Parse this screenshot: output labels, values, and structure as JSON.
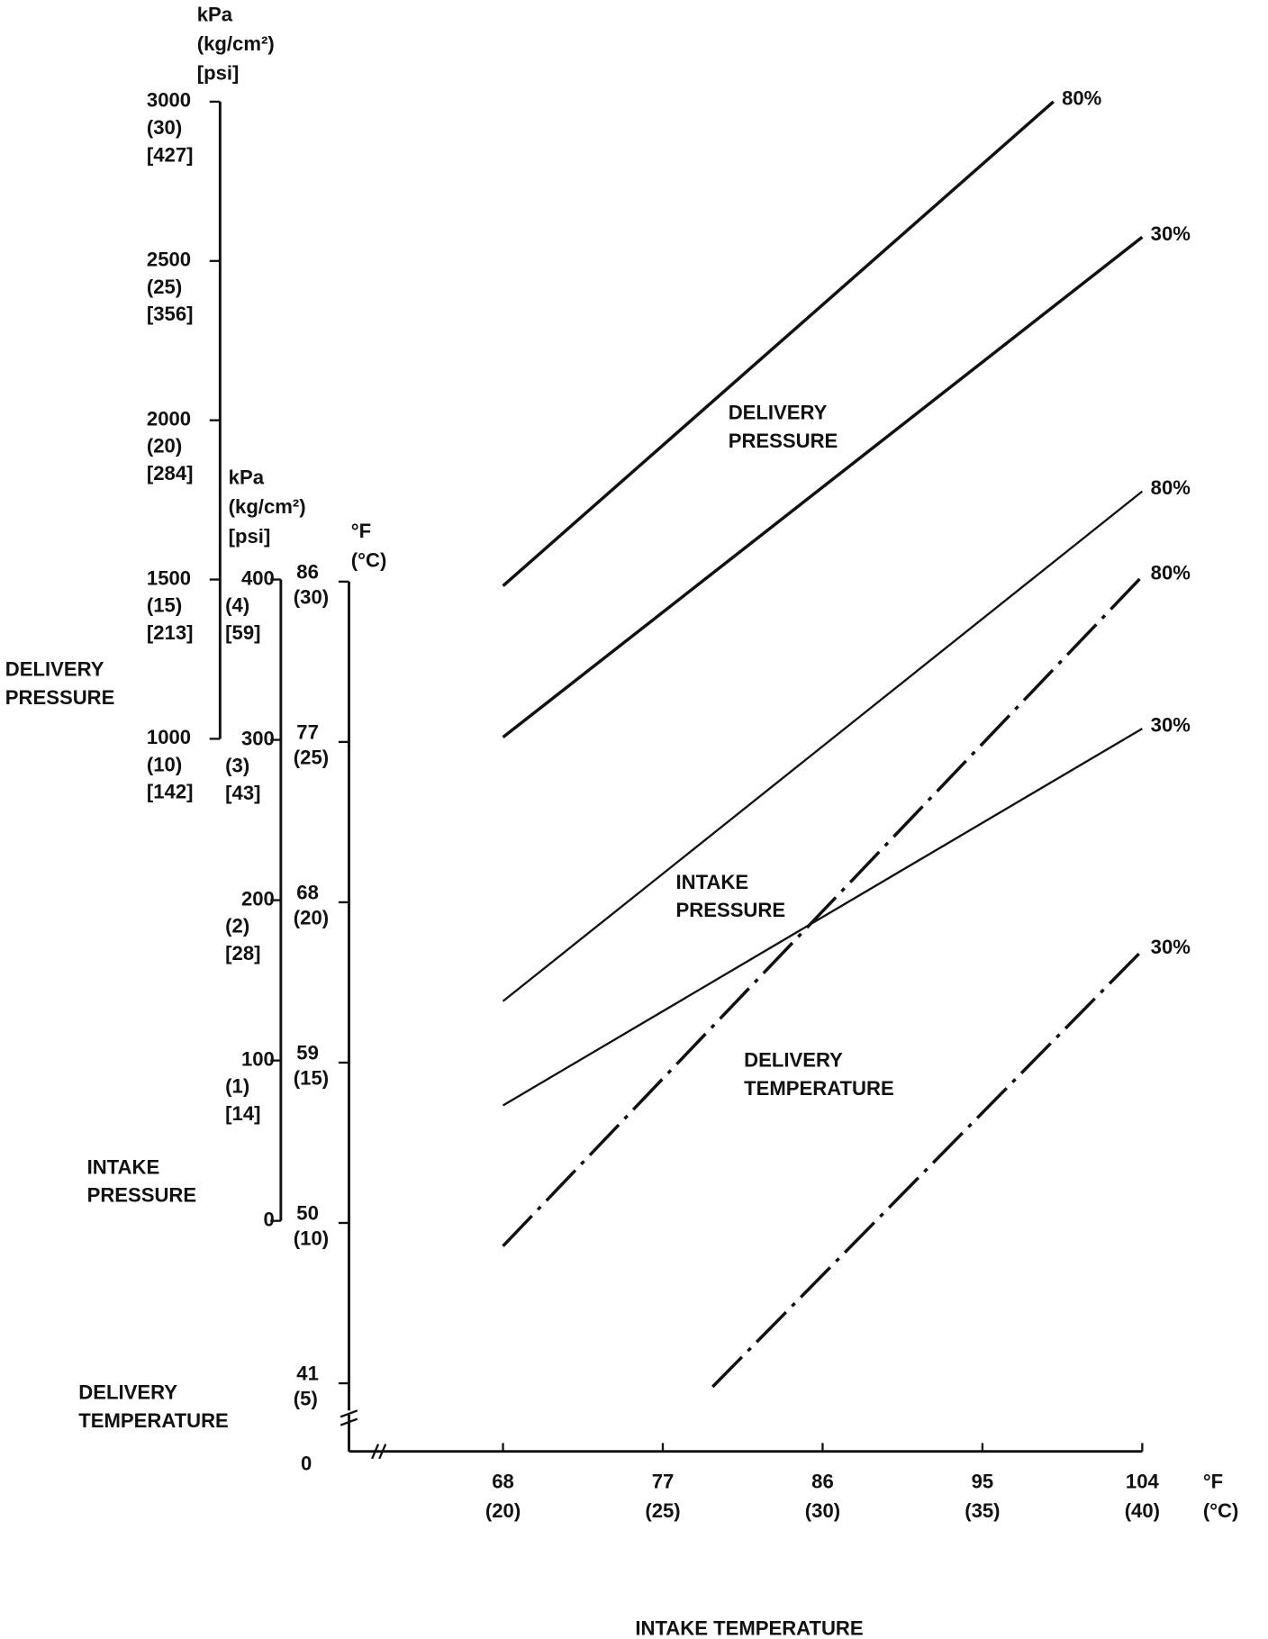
{
  "chart_data": {
    "type": "line",
    "x_label": "INTAKE TEMPERATURE",
    "x_units": [
      "°F",
      "(°C)"
    ],
    "xlim": [
      68,
      104
    ],
    "xticks": [
      68,
      77,
      86,
      95,
      104
    ],
    "xtick_celsius": [
      "(20)",
      "(25)",
      "(30)",
      "(35)",
      "(40)"
    ],
    "origin_label": "0",
    "y_axes": [
      {
        "title": [
          "DELIVERY",
          "PRESSURE"
        ],
        "units": [
          "kPa",
          "(kg/cm²)",
          "[psi]"
        ],
        "ylim": [
          1000,
          3000
        ],
        "yticks": [
          1000,
          1500,
          2000,
          2500,
          3000
        ],
        "tick_kg": [
          "(10)",
          "(15)",
          "(20)",
          "(25)",
          "(30)"
        ],
        "tick_psi": [
          "[142]",
          "[213]",
          "[284]",
          "[356]",
          "[427]"
        ]
      },
      {
        "title": [
          "INTAKE",
          "PRESSURE"
        ],
        "units": [
          "kPa",
          "(kg/cm²)",
          "[psi]"
        ],
        "ylim": [
          0,
          400
        ],
        "yticks": [
          0,
          100,
          200,
          300,
          400
        ],
        "tick_kg": [
          null,
          "(1)",
          "(2)",
          "(3)",
          "(4)"
        ],
        "tick_psi": [
          null,
          "[14]",
          "[28]",
          "[43]",
          "[59]"
        ]
      },
      {
        "title": [
          "DELIVERY",
          "TEMPERATURE"
        ],
        "units": [
          "°F",
          "(°C)"
        ],
        "ylim": [
          41,
          86
        ],
        "yticks": [
          41,
          50,
          59,
          68,
          77,
          86
        ],
        "tick_kg": [
          "(5)",
          "(10)",
          "(15)",
          "(20)",
          "(25)",
          "(30)"
        ]
      }
    ],
    "series": [
      {
        "name": "80%",
        "y_axis": 0,
        "style": "solid",
        "width": 3,
        "color": "#111111",
        "x": [
          68,
          99
        ],
        "values": [
          1480,
          3000
        ]
      },
      {
        "name": "30%",
        "y_axis": 0,
        "style": "solid",
        "width": 3,
        "color": "#111111",
        "x": [
          68,
          104
        ],
        "values": [
          1005,
          2575
        ]
      },
      {
        "name": "80%",
        "y_axis": 1,
        "style": "solid",
        "width": 2,
        "color": "#111111",
        "x": [
          68,
          104
        ],
        "values": [
          137,
          455
        ]
      },
      {
        "name": "30%",
        "y_axis": 1,
        "style": "solid",
        "width": 2,
        "color": "#111111",
        "x": [
          68,
          104
        ],
        "values": [
          72,
          307
        ]
      },
      {
        "name": "80%",
        "y_axis": 2,
        "style": "dashdot",
        "width": 3,
        "color": "#111111",
        "x": [
          68,
          104
        ],
        "values": [
          48.7,
          86.3
        ]
      },
      {
        "name": "30%",
        "y_axis": 2,
        "style": "dashdot",
        "width": 3,
        "color": "#111111",
        "x": [
          79.8,
          104
        ],
        "values": [
          40.8,
          65.3
        ]
      }
    ],
    "annotations": [
      {
        "text": [
          "DELIVERY",
          "PRESSURE"
        ]
      },
      {
        "text": [
          "INTAKE",
          "PRESSURE"
        ]
      },
      {
        "text": [
          "DELIVERY",
          "TEMPERATURE"
        ]
      }
    ]
  }
}
